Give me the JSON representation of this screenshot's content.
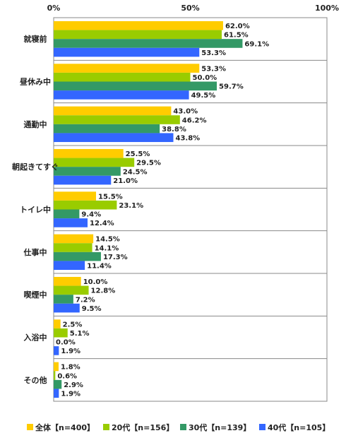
{
  "chart_data": {
    "type": "bar",
    "orientation": "horizontal",
    "xlim": [
      0,
      100
    ],
    "x_ticks": [
      "0%",
      "50%",
      "100%"
    ],
    "categories": [
      "就寝前",
      "昼休み中",
      "通勤中",
      "朝起きてすぐ",
      "トイレ中",
      "仕事中",
      "喫煙中",
      "入浴中",
      "その他"
    ],
    "series": [
      {
        "name": "全体【n=400】",
        "color": "#FFCC00",
        "values": [
          62.0,
          53.3,
          43.0,
          25.5,
          15.5,
          14.5,
          10.0,
          2.5,
          1.8
        ]
      },
      {
        "name": "20代【n=156】",
        "color": "#99CC00",
        "values": [
          61.5,
          50.0,
          46.2,
          29.5,
          23.1,
          14.1,
          12.8,
          5.1,
          0.6
        ]
      },
      {
        "name": "30代【n=139】",
        "color": "#339966",
        "values": [
          69.1,
          59.7,
          38.8,
          24.5,
          9.4,
          17.3,
          7.2,
          0.0,
          2.9
        ]
      },
      {
        "name": "40代【n=105】",
        "color": "#3366FF",
        "values": [
          53.3,
          49.5,
          43.8,
          21.0,
          12.4,
          11.4,
          9.5,
          1.9,
          1.9
        ]
      }
    ],
    "value_labels": [
      [
        "62.0%",
        "53.3%",
        "43.0%",
        "25.5%",
        "15.5%",
        "14.5%",
        "10.0%",
        "2.5%",
        "1.8%"
      ],
      [
        "61.5%",
        "50.0%",
        "46.2%",
        "29.5%",
        "23.1%",
        "14.1%",
        "12.8%",
        "5.1%",
        "0.6%"
      ],
      [
        "69.1%",
        "59.7%",
        "38.8%",
        "24.5%",
        "9.4%",
        "17.3%",
        "7.2%",
        "0.0%",
        "2.9%"
      ],
      [
        "53.3%",
        "49.5%",
        "43.8%",
        "21.0%",
        "12.4%",
        "11.4%",
        "9.5%",
        "1.9%",
        "1.9%"
      ]
    ],
    "legend_position": "bottom",
    "grid": false
  }
}
